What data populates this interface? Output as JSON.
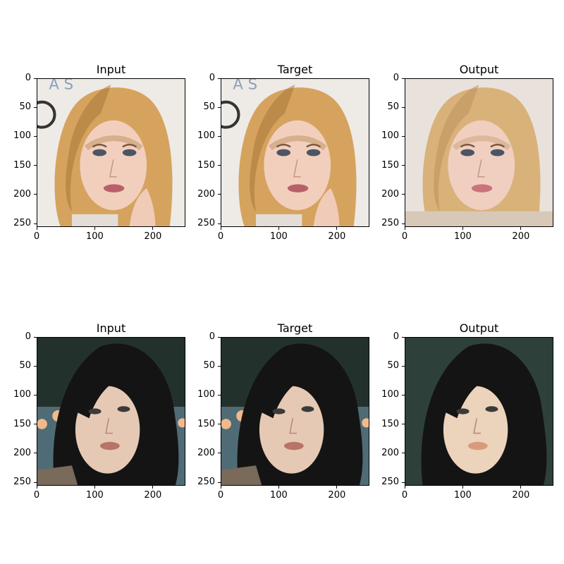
{
  "figure": {
    "rows": [
      {
        "panels": [
          {
            "title": "Input",
            "image": "portrait-blonde-woman-input"
          },
          {
            "title": "Target",
            "image": "portrait-blonde-woman-target"
          },
          {
            "title": "Output",
            "image": "portrait-blonde-woman-output"
          }
        ]
      },
      {
        "panels": [
          {
            "title": "Input",
            "image": "portrait-dark-haired-woman-input"
          },
          {
            "title": "Target",
            "image": "portrait-dark-haired-woman-target"
          },
          {
            "title": "Output",
            "image": "portrait-dark-haired-woman-output"
          }
        ]
      }
    ],
    "x_ticks": [
      "0",
      "100",
      "200"
    ],
    "y_ticks": [
      "0",
      "50",
      "100",
      "150",
      "200",
      "250"
    ],
    "tick_values_x": [
      0,
      100,
      200
    ],
    "tick_values_y": [
      0,
      50,
      100,
      150,
      200,
      250
    ],
    "axis_range": [
      0,
      256
    ]
  }
}
